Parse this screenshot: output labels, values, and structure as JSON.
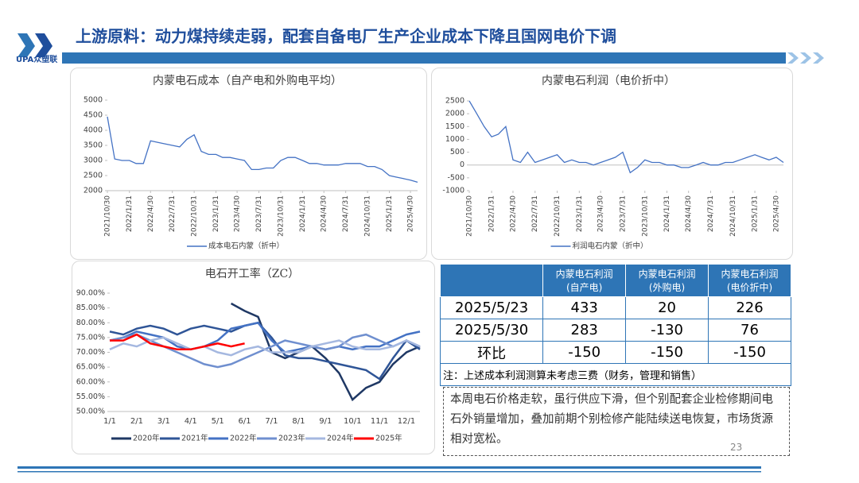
{
  "header": {
    "logo": "UPA众塑联",
    "title": "上游原料：动力煤持续走弱，配套自备电厂生产企业成本下降且国网电价下调"
  },
  "chart_data": [
    {
      "type": "line",
      "title": "内蒙电石成本（自产电和外购电平均）",
      "x": [
        "2021/10/30",
        "2021/11/30",
        "2021/12/31",
        "2022/1/31",
        "2022/2/28",
        "2022/3/31",
        "2022/4/30",
        "2022/5/31",
        "2022/6/30",
        "2022/7/31",
        "2022/8/31",
        "2022/9/30",
        "2022/10/31",
        "2022/11/30",
        "2022/12/31",
        "2023/1/31",
        "2023/2/28",
        "2023/3/31",
        "2023/4/30",
        "2023/5/31",
        "2023/6/30",
        "2023/7/31",
        "2023/8/31",
        "2023/9/30",
        "2023/10/31",
        "2023/11/30",
        "2023/12/31",
        "2024/1/31",
        "2024/2/29",
        "2024/3/31",
        "2024/4/30",
        "2024/5/31",
        "2024/6/30",
        "2024/7/31",
        "2024/8/31",
        "2024/9/30",
        "2024/10/31",
        "2024/11/30",
        "2024/12/31",
        "2025/1/31",
        "2025/2/28",
        "2025/3/31",
        "2025/4/30",
        "2025/5/30"
      ],
      "series": [
        {
          "name": "成本电石内蒙（折中）",
          "color": "#4472c4",
          "values": [
            4450,
            3050,
            3000,
            3000,
            2900,
            2900,
            3650,
            3600,
            3550,
            3500,
            3450,
            3700,
            3850,
            3300,
            3200,
            3200,
            3100,
            3100,
            3050,
            3000,
            2700,
            2700,
            2750,
            2750,
            3000,
            3100,
            3100,
            3000,
            2900,
            2900,
            2850,
            2850,
            2850,
            2900,
            2900,
            2900,
            2800,
            2800,
            2700,
            2500,
            2450,
            2400,
            2350,
            2280
          ]
        }
      ],
      "ylim": [
        2000,
        5000
      ],
      "yticks": [
        2000,
        2500,
        3000,
        3500,
        4000,
        4500,
        5000
      ],
      "xticks": [
        "2021/10/30",
        "2022/1/31",
        "2022/4/30",
        "2022/7/31",
        "2022/10/31",
        "2023/1/31",
        "2023/4/30",
        "2023/7/31",
        "2023/10/31",
        "2024/1/31",
        "2024/4/30",
        "2024/7/31",
        "2024/10/31",
        "2025/1/31",
        "2025/4/30"
      ],
      "grid": false
    },
    {
      "type": "line",
      "title": "内蒙电石利润（电价折中）",
      "x": [
        "2021/10/30",
        "2021/11/30",
        "2021/12/31",
        "2022/1/31",
        "2022/2/28",
        "2022/3/31",
        "2022/4/30",
        "2022/5/31",
        "2022/6/30",
        "2022/7/31",
        "2022/8/31",
        "2022/9/30",
        "2022/10/31",
        "2022/11/30",
        "2022/12/31",
        "2023/1/31",
        "2023/2/28",
        "2023/3/31",
        "2023/4/30",
        "2023/5/31",
        "2023/6/30",
        "2023/7/31",
        "2023/8/31",
        "2023/9/30",
        "2023/10/31",
        "2023/11/30",
        "2023/12/31",
        "2024/1/31",
        "2024/2/29",
        "2024/3/31",
        "2024/4/30",
        "2024/5/31",
        "2024/6/30",
        "2024/7/31",
        "2024/8/31",
        "2024/9/30",
        "2024/10/31",
        "2024/11/30",
        "2024/12/31",
        "2025/1/31",
        "2025/2/28",
        "2025/3/31",
        "2025/4/30",
        "2025/5/30"
      ],
      "series": [
        {
          "name": "利润电石内蒙（折中）",
          "color": "#4472c4",
          "values": [
            2500,
            2000,
            1500,
            1100,
            1200,
            1500,
            200,
            100,
            500,
            100,
            200,
            300,
            400,
            100,
            200,
            100,
            100,
            0,
            100,
            200,
            300,
            500,
            -300,
            -100,
            200,
            100,
            100,
            0,
            0,
            -100,
            -100,
            0,
            100,
            0,
            0,
            100,
            100,
            200,
            300,
            400,
            300,
            200,
            300,
            100
          ]
        }
      ],
      "ylim": [
        -1000,
        2500
      ],
      "yticks": [
        -1000,
        -500,
        0,
        500,
        1000,
        1500,
        2000,
        2500
      ],
      "xticks": [
        "2021/10/30",
        "2022/1/31",
        "2022/4/30",
        "2022/7/31",
        "2022/10/31",
        "2023/1/31",
        "2023/4/30",
        "2023/7/31",
        "2023/10/31",
        "2024/1/31",
        "2024/4/30",
        "2024/7/31",
        "2024/10/31",
        "2025/1/31",
        "2025/4/30"
      ],
      "grid": false
    },
    {
      "type": "line",
      "title": "电石开工率（ZC）",
      "categories": [
        "1/1",
        null,
        "2/1",
        null,
        "3/1",
        null,
        "4/1",
        null,
        "5/1",
        null,
        "6/1",
        null,
        "7/1",
        null,
        "8/1",
        null,
        "9/1",
        null,
        "10/1",
        null,
        "11/1",
        null,
        "12/1",
        null
      ],
      "series": [
        {
          "name": "2020年",
          "color": "#1f3864",
          "values": [
            null,
            null,
            null,
            null,
            null,
            null,
            null,
            null,
            null,
            86.5,
            84,
            82,
            70,
            68,
            70,
            72,
            68,
            63,
            54,
            58,
            60,
            66,
            70,
            72
          ]
        },
        {
          "name": "2021年",
          "color": "#2f5597",
          "values": [
            77,
            76,
            78,
            79,
            78,
            76,
            78,
            79,
            78,
            77,
            79,
            80,
            75,
            69,
            68,
            68,
            67,
            66,
            65,
            64,
            61,
            68,
            74,
            71
          ]
        },
        {
          "name": "2022年",
          "color": "#4472c4",
          "values": [
            74,
            75,
            77,
            76,
            75,
            72,
            71,
            72,
            74,
            78,
            79,
            80,
            74,
            70,
            71,
            72,
            71,
            72,
            71,
            72,
            72,
            74,
            76,
            77
          ]
        },
        {
          "name": "2023年",
          "color": "#6f8fcf",
          "values": [
            74,
            75,
            76,
            74,
            72,
            70,
            68,
            66,
            65,
            66,
            68,
            70,
            72,
            74,
            73,
            72,
            71,
            72,
            75,
            76,
            74,
            72,
            74,
            72
          ]
        },
        {
          "name": "2024年",
          "color": "#a5b8e0",
          "values": [
            71,
            73,
            72,
            74,
            75,
            73,
            71,
            72,
            70,
            69,
            71,
            72,
            70,
            70,
            70,
            72,
            73,
            74,
            72,
            71,
            71,
            72,
            74,
            72
          ]
        },
        {
          "name": "2025年",
          "color": "#ff0000",
          "values": [
            74,
            74,
            76,
            73,
            72,
            71,
            71,
            72,
            73,
            72,
            73,
            null,
            null,
            null,
            null,
            null,
            null,
            null,
            null,
            null,
            null,
            null,
            null,
            null
          ]
        }
      ],
      "ylim": [
        50,
        90
      ],
      "yticks": [
        {
          "value": 50,
          "label": "50.00%"
        },
        {
          "value": 55,
          "label": "55.00%"
        },
        {
          "value": 60,
          "label": "60.00%"
        },
        {
          "value": 65,
          "label": "65.00%"
        },
        {
          "value": 70,
          "label": "70.00%"
        },
        {
          "value": 75,
          "label": "75.00%"
        },
        {
          "value": 80,
          "label": "80.00%"
        },
        {
          "value": 85,
          "label": "85.00%"
        },
        {
          "value": 90,
          "label": "90.00%"
        }
      ],
      "grid": false
    }
  ],
  "table": {
    "header": [
      "",
      "内蒙电石利润\n(自产电)",
      "内蒙电石利润\n(外购电)",
      "内蒙电石利润\n(电价折中)"
    ],
    "rows": [
      [
        "2025/5/23",
        433,
        20,
        226
      ],
      [
        "2025/5/30",
        283,
        -130,
        76
      ],
      [
        "环比",
        -150,
        -150,
        -150
      ]
    ],
    "note": "注：上述成本利润测算未考虑三费（财务，管理和销售）"
  },
  "text_box": "本周电石价格走软，虽行供应下滑，但个别配套企业检修期间电石外销量增加，叠加前期个别检修产能陆续送电恢复，市场货源相对宽松。",
  "page_number": "23"
}
